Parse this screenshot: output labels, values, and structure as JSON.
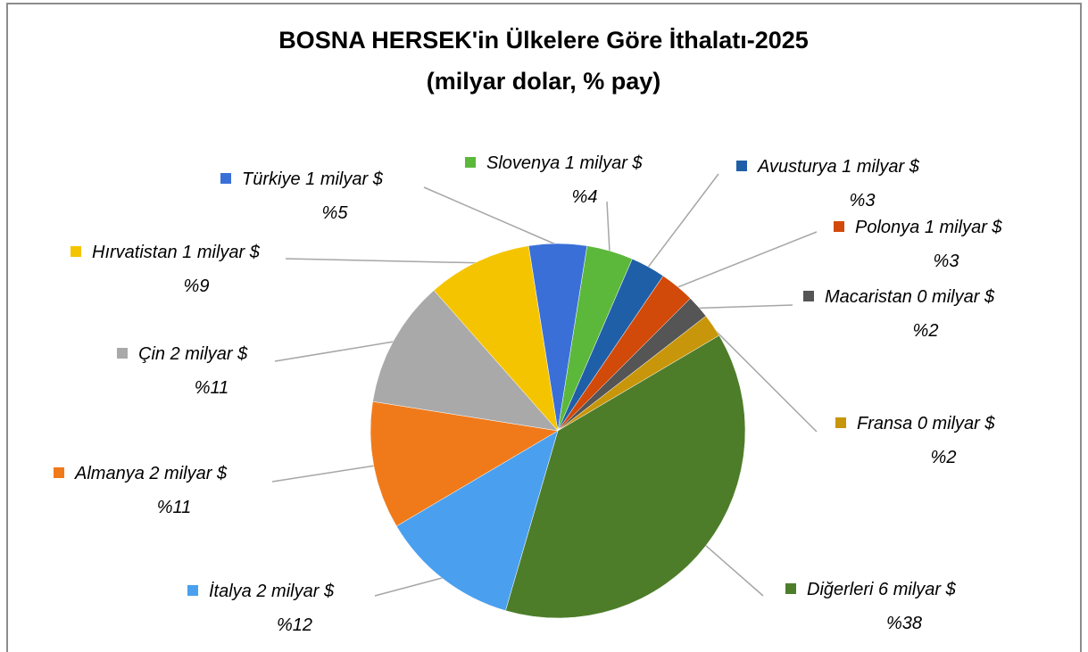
{
  "chart_data": {
    "type": "pie",
    "title": "BOSNA HERSEK'in Ülkelere Göre İthalatı-2025",
    "subtitle": "(milyar dolar, % pay)",
    "categories": [
      "Türkiye",
      "Slovenya",
      "Avusturya",
      "Polonya",
      "Macaristan",
      "Fransa",
      "Diğerleri",
      "İtalya",
      "Almanya",
      "Çin",
      "Hırvatistan"
    ],
    "values": [
      5,
      4,
      3,
      3,
      2,
      2,
      38,
      12,
      11,
      11,
      9
    ],
    "value_labels": [
      "%5",
      "%4",
      "%3",
      "%3",
      "%2",
      "%2",
      "%38",
      "%12",
      "%11",
      "%11",
      "%9"
    ],
    "amounts": [
      1,
      1,
      1,
      1,
      0,
      0,
      6,
      2,
      2,
      2,
      1
    ],
    "amount_labels": [
      "1 milyar $",
      "1 milyar $",
      "1 milyar $",
      "1 milyar $",
      "0 milyar $",
      "0 milyar $",
      "6 milyar $",
      "2 milyar $",
      "2 milyar $",
      "2 milyar $",
      "1 milyar $"
    ],
    "colors": [
      "#3a6fd8",
      "#5cb83a",
      "#1f5fa8",
      "#d24a0a",
      "#555555",
      "#c8960a",
      "#4e7d2a",
      "#4aa0ee",
      "#f07a1a",
      "#a9a9a9",
      "#f5c400"
    ]
  }
}
